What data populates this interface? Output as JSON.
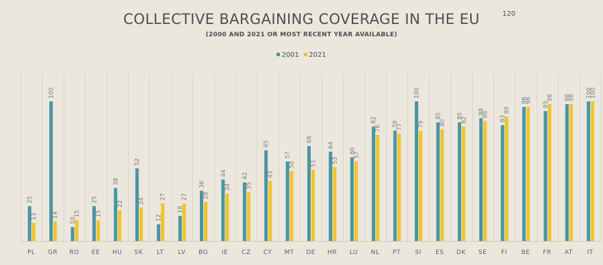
{
  "page_number": "120",
  "chart_data": {
    "type": "bar",
    "title": "COLLECTIVE BARGAINING COVERAGE IN THE EU",
    "subtitle": "(2000 AND 2021 OR MOST RECENT YEAR AVAILABLE)",
    "categories": [
      "PL",
      "GR",
      "RO",
      "EE",
      "HU",
      "SK",
      "LT",
      "LV",
      "BG",
      "IE",
      "CZ",
      "CY",
      "MT",
      "DE",
      "HR",
      "LU",
      "NL",
      "PT",
      "SI",
      "ES",
      "DK",
      "SE",
      "FI",
      "BE",
      "FR",
      "AT",
      "IT"
    ],
    "series": [
      {
        "name": "2001",
        "color": "#4a95a3",
        "values": [
          25,
          100,
          10,
          25,
          38,
          52,
          12,
          18,
          36,
          44,
          42,
          65,
          57,
          68,
          64,
          60,
          82,
          79,
          100,
          85,
          85,
          88,
          83,
          96,
          93,
          98,
          100
        ]
      },
      {
        "name": "2021",
        "color": "#f0c52c",
        "values": [
          13,
          14,
          15,
          15,
          22,
          24,
          27,
          27,
          28,
          34,
          35,
          43,
          50,
          51,
          53,
          57,
          76,
          77,
          79,
          80,
          82,
          86,
          89,
          96,
          98,
          98,
          100
        ]
      }
    ],
    "ylim": [
      0,
      100
    ],
    "grid": "vertical",
    "legend": "top-center",
    "data_labels": true
  }
}
